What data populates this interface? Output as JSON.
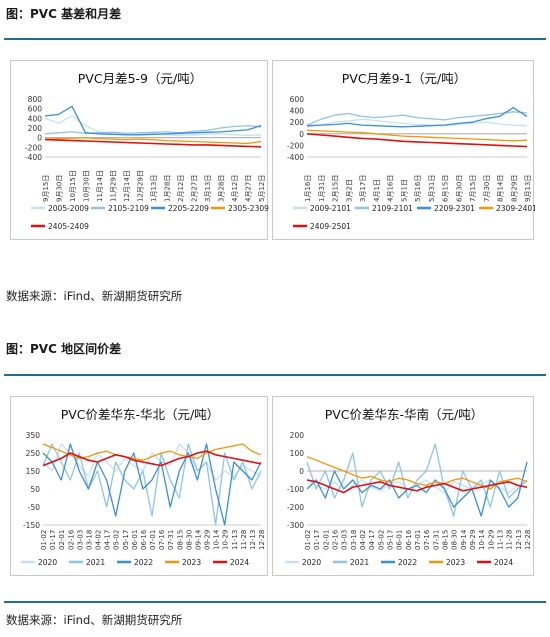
{
  "figure1": {
    "title": "图：PVC 基差和月差",
    "source": "数据来源：iFind、新湖期货研究所"
  },
  "figure2": {
    "title": "图：PVC 地区间价差",
    "source": "数据来源：iFind、新湖期货研究所"
  },
  "chart_data": [
    {
      "type": "line",
      "title": "PVC月差5-9（元/吨）",
      "ylim": [
        -400,
        800
      ],
      "yticks": [
        "800",
        "600",
        "400",
        "200",
        "0",
        "-200",
        "-400"
      ],
      "xticks": [
        "9月15日",
        "9月30日",
        "10月15日",
        "10月30日",
        "11月14日",
        "11月29日",
        "12月14日",
        "12月29日",
        "1月13日",
        "1月28日",
        "2月12日",
        "2月27日",
        "3月13日",
        "3月28日",
        "4月12日",
        "4月27日",
        "5月12日"
      ],
      "series": [
        {
          "name": "2005-2009",
          "color": "#c6e0f5",
          "values": [
            400,
            300,
            450,
            250,
            120,
            80,
            60,
            70,
            80,
            60,
            50,
            60,
            70,
            80,
            60,
            50,
            60
          ]
        },
        {
          "name": "2105-2109",
          "color": "#8fc3ea",
          "values": [
            80,
            100,
            120,
            90,
            100,
            110,
            90,
            100,
            110,
            120,
            100,
            130,
            150,
            200,
            230,
            250,
            220
          ]
        },
        {
          "name": "2205-2209",
          "color": "#3a8fd6",
          "values": [
            450,
            480,
            650,
            100,
            80,
            70,
            60,
            60,
            70,
            80,
            90,
            100,
            110,
            120,
            140,
            160,
            250
          ]
        },
        {
          "name": "2305-2309",
          "color": "#f0960a",
          "values": [
            -30,
            -20,
            -10,
            0,
            -20,
            -30,
            -40,
            -30,
            -40,
            -60,
            -70,
            -80,
            -90,
            -100,
            -110,
            -120,
            -80
          ]
        },
        {
          "name": "2405-2409",
          "color": "#e01010",
          "values": [
            -40,
            -50,
            -60,
            -70,
            -80,
            -90,
            -100,
            -110,
            -120,
            -130,
            -140,
            -150,
            -150,
            -160,
            -170,
            -180,
            -190
          ]
        }
      ]
    },
    {
      "type": "line",
      "title": "PVC月差9-1（元/吨）",
      "ylim": [
        -400,
        600
      ],
      "yticks": [
        "600",
        "400",
        "200",
        "0",
        "-200",
        "-400"
      ],
      "xticks": [
        "1月16日",
        "1月31日",
        "2月15日",
        "3月2日",
        "3月17日",
        "4月1日",
        "4月16日",
        "5月1日",
        "5月16日",
        "5月31日",
        "6月15日",
        "6月30日",
        "7月15日",
        "7月30日",
        "8月14日",
        "8月29日",
        "9月13日"
      ],
      "series": [
        {
          "name": "2009-2101",
          "color": "#c6e0f5",
          "values": [
            120,
            150,
            200,
            220,
            250,
            230,
            200,
            180,
            160,
            150,
            140,
            160,
            180,
            200,
            170,
            150,
            140
          ]
        },
        {
          "name": "2109-2101",
          "color": "#8fc3ea",
          "values": [
            150,
            250,
            320,
            350,
            300,
            280,
            300,
            320,
            280,
            260,
            240,
            280,
            300,
            320,
            350,
            380,
            360
          ]
        },
        {
          "name": "2209-2301",
          "color": "#3a8fd6",
          "values": [
            140,
            150,
            160,
            180,
            150,
            140,
            130,
            120,
            130,
            140,
            150,
            180,
            200,
            260,
            300,
            450,
            300
          ]
        },
        {
          "name": "2309-2401",
          "color": "#f0960a",
          "values": [
            60,
            50,
            40,
            30,
            20,
            0,
            -20,
            -40,
            -50,
            -60,
            -70,
            -80,
            -90,
            -100,
            -110,
            -120,
            -110
          ]
        },
        {
          "name": "2409-2501",
          "color": "#e01010",
          "values": [
            0,
            -20,
            -40,
            -60,
            -80,
            -90,
            -110,
            -130,
            -140,
            -150,
            -160,
            -170,
            -180,
            -190,
            -200,
            -210,
            -220
          ]
        }
      ]
    },
    {
      "type": "line",
      "title": "PVC价差华东-华北（元/吨）",
      "ylim": [
        -150,
        350
      ],
      "yticks": [
        "350",
        "250",
        "150",
        "50",
        "-50",
        "-150"
      ],
      "xticks": [
        "01-02",
        "01-17",
        "02-01",
        "02-16",
        "03-03",
        "03-18",
        "04-02",
        "04-17",
        "05-02",
        "05-17",
        "06-01",
        "06-16",
        "07-01",
        "07-16",
        "07-31",
        "08-15",
        "08-30",
        "09-14",
        "09-29",
        "10-14",
        "10-29",
        "11-13",
        "11-28",
        "12-13",
        "12-28"
      ],
      "series": [
        {
          "name": "2020",
          "color": "#c6e0f5",
          "values": [
            200,
            150,
            300,
            250,
            180,
            120,
            250,
            200,
            150,
            220,
            180,
            150,
            250,
            200,
            180,
            300,
            250,
            150,
            200,
            100,
            150,
            120,
            180,
            150,
            120
          ]
        },
        {
          "name": "2021",
          "color": "#8fc3ea",
          "values": [
            180,
            300,
            200,
            100,
            250,
            50,
            150,
            -50,
            200,
            100,
            50,
            150,
            -100,
            250,
            100,
            0,
            300,
            150,
            200,
            -150,
            250,
            100,
            200,
            50,
            150
          ]
        },
        {
          "name": "2022",
          "color": "#3a8fd6",
          "values": [
            250,
            200,
            100,
            300,
            150,
            50,
            200,
            100,
            -100,
            150,
            250,
            50,
            100,
            200,
            -50,
            150,
            250,
            100,
            300,
            50,
            -150,
            200,
            150,
            100,
            200
          ]
        },
        {
          "name": "2023",
          "color": "#f0960a",
          "values": [
            300,
            280,
            260,
            240,
            220,
            230,
            250,
            260,
            240,
            230,
            220,
            210,
            230,
            250,
            260,
            240,
            230,
            220,
            250,
            270,
            280,
            290,
            300,
            260,
            240
          ]
        },
        {
          "name": "2024",
          "color": "#e01010",
          "values": [
            180,
            200,
            220,
            250,
            230,
            210,
            200,
            220,
            240,
            230,
            210,
            200,
            190,
            180,
            200,
            220,
            230,
            250,
            260,
            240,
            230,
            220,
            210,
            200,
            190
          ]
        }
      ]
    },
    {
      "type": "line",
      "title": "PVC价差华东-华南（元/吨）",
      "ylim": [
        -300,
        200
      ],
      "yticks": [
        "200",
        "100",
        "0",
        "-100",
        "-200",
        "-300"
      ],
      "xticks": [
        "01-02",
        "01-17",
        "02-01",
        "02-16",
        "03-03",
        "03-18",
        "04-02",
        "04-17",
        "05-02",
        "05-17",
        "06-01",
        "06-16",
        "07-01",
        "07-16",
        "07-31",
        "08-15",
        "08-30",
        "09-14",
        "09-29",
        "10-14",
        "10-29",
        "11-13",
        "11-28",
        "12-13",
        "12-28"
      ],
      "series": [
        {
          "name": "2020",
          "color": "#c6e0f5",
          "values": [
            -50,
            -80,
            -100,
            -60,
            -120,
            -80,
            -50,
            -90,
            -110,
            -70,
            -60,
            -100,
            -80,
            -50,
            -90,
            -120,
            -60,
            -80,
            -100,
            -70,
            -50,
            -90,
            -120,
            -80,
            -60
          ]
        },
        {
          "name": "2021",
          "color": "#8fc3ea",
          "values": [
            50,
            -100,
            0,
            -150,
            -50,
            100,
            -200,
            -50,
            0,
            -100,
            50,
            -150,
            -50,
            0,
            150,
            -100,
            -250,
            0,
            -100,
            -50,
            -200,
            0,
            -150,
            -100,
            -50
          ]
        },
        {
          "name": "2022",
          "color": "#3a8fd6",
          "values": [
            -100,
            -50,
            -150,
            0,
            -100,
            -50,
            -120,
            -80,
            -100,
            -50,
            -150,
            -100,
            -80,
            -120,
            -50,
            -100,
            -200,
            -150,
            -100,
            -250,
            -50,
            -100,
            -200,
            -150,
            50
          ]
        },
        {
          "name": "2023",
          "color": "#f0960a",
          "values": [
            80,
            60,
            40,
            20,
            0,
            -20,
            -40,
            -30,
            -50,
            -60,
            -40,
            -50,
            -70,
            -80,
            -60,
            -70,
            -50,
            -40,
            -60,
            -80,
            -100,
            -60,
            -50,
            -40,
            -60
          ]
        },
        {
          "name": "2024",
          "color": "#e01010",
          "values": [
            -50,
            -60,
            -80,
            -100,
            -120,
            -90,
            -80,
            -70,
            -60,
            -80,
            -90,
            -100,
            -110,
            -90,
            -80,
            -70,
            -90,
            -110,
            -100,
            -90,
            -80,
            -70,
            -60,
            -80,
            -90
          ]
        }
      ]
    }
  ]
}
